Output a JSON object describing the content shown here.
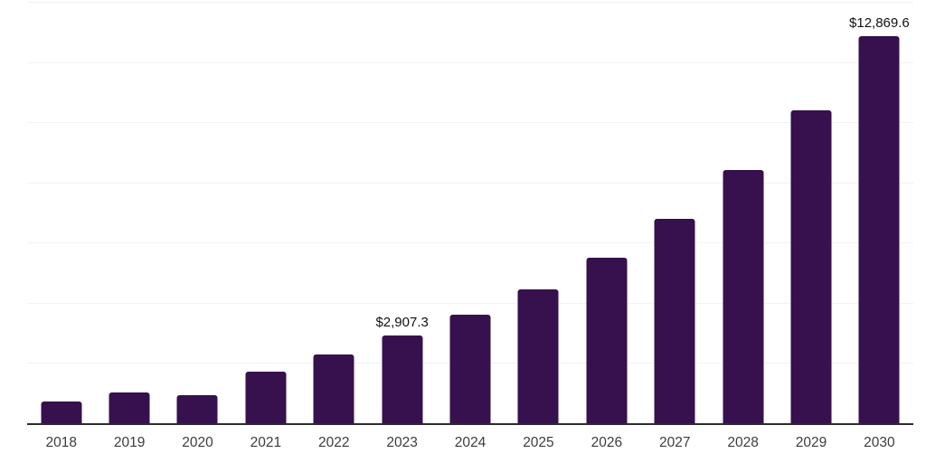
{
  "chart_data": {
    "type": "bar",
    "title": "",
    "xlabel": "",
    "ylabel": "",
    "categories": [
      "2018",
      "2019",
      "2020",
      "2021",
      "2022",
      "2023",
      "2024",
      "2025",
      "2026",
      "2027",
      "2028",
      "2029",
      "2030"
    ],
    "values": [
      720,
      1020,
      930,
      1710,
      2280,
      2907.3,
      3595.8,
      4447.3,
      5500.4,
      6802.9,
      8414.1,
      10406.6,
      12869.6
    ],
    "point_labels": [
      null,
      null,
      null,
      null,
      null,
      "$2,907.3",
      null,
      null,
      null,
      null,
      null,
      null,
      "$12,869.6"
    ],
    "ylim": [
      0,
      14000
    ],
    "gridline_values": [
      2000,
      4000,
      6000,
      8000,
      10000,
      12000,
      14000
    ],
    "grid_on": true,
    "legend": null,
    "colors": {
      "bar": "#36114d",
      "gridline": "#f2f2f2",
      "axis_line": "#2b2b2b",
      "tick_label": "#3d3d3d",
      "value_label": "#111111",
      "background": "#ffffff"
    }
  }
}
